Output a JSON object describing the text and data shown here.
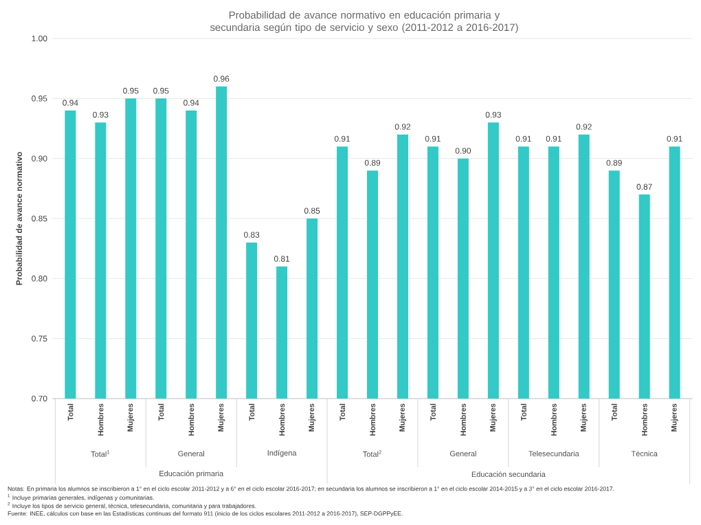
{
  "chart_data": {
    "type": "bar",
    "title": "Probabilidad de avance normativo en educación primaria y secundaria según tipo de servicio y sexo (2011-2012 a 2016-2017)",
    "ylabel": "Probabilidad de avance normativo",
    "categories": [
      "Total",
      "Hombres",
      "Mujeres",
      "Total",
      "Hombres",
      "Mujeres",
      "Total",
      "Hombres",
      "Mujeres",
      "Total",
      "Hombres",
      "Mujeres",
      "Total",
      "Hombres",
      "Mujeres",
      "Total",
      "Hombres",
      "Mujeres",
      "Total",
      "Hombres",
      "Mujeres"
    ],
    "values": [
      0.94,
      0.93,
      0.95,
      0.95,
      0.94,
      0.96,
      0.83,
      0.81,
      0.85,
      0.91,
      0.89,
      0.92,
      0.91,
      0.9,
      0.93,
      0.91,
      0.91,
      0.92,
      0.89,
      0.87,
      0.91
    ],
    "color": "#33c9c6",
    "ylim": [
      0.7,
      1.0
    ],
    "yticks": [
      {
        "value": 0.7,
        "label": "0.70"
      },
      {
        "value": 0.75,
        "label": "0.75"
      },
      {
        "value": 0.8,
        "label": "0.80"
      },
      {
        "value": 0.85,
        "label": "0.85"
      },
      {
        "value": 0.9,
        "label": "0.90"
      },
      {
        "value": 0.95,
        "label": "0.95"
      },
      {
        "value": 1.0,
        "label": "1.00"
      }
    ],
    "grid": "y",
    "value_labels": [
      "0.94",
      "0.93",
      "0.95",
      "0.95",
      "0.94",
      "0.96",
      "0.83",
      "0.81",
      "0.85",
      "0.91",
      "0.89",
      "0.92",
      "0.91",
      "0.90",
      "0.93",
      "0.91",
      "0.91",
      "0.92",
      "0.89",
      "0.87",
      "0.91"
    ],
    "annotations": [
      "Total$^{1}$",
      "General",
      "Indígena",
      "Total$^{2}$",
      "General",
      "Telesecundaria",
      "Técnica",
      "Educación primaria",
      "Educación secundaria",
      "Notas: En primaria los alumnos se inscribieron a 1° en el ciclo escolar 2011-2012 y a 6° en el ciclo escolar 2016-2017; en secundaria los alumnos se inscribieron a 1° en el ciclo escolar 2014-2015 y a 3° en el ciclo escolar 2016-2017.",
      "$^{1}$ Incluye primarias generales, indígenas y comunitarias.",
      "$^{2}$ Incluye los tipos de servicio general, técnica, telesecundaria, comunitaria y para trabajadores.",
      "Fuente: INEE, cálculos con base en las Estadísticas continuas del formato 911 (inicio de los ciclos escolares 2011-2012 a 2016-2017), SEP-DGPPyEE."
    ]
  }
}
